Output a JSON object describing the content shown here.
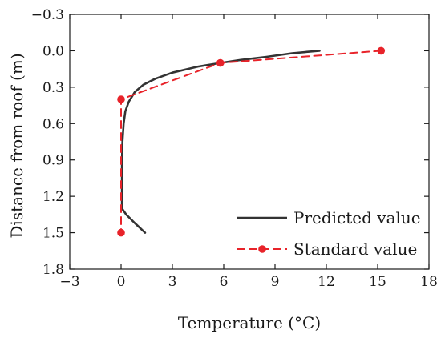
{
  "chart_data": {
    "type": "line",
    "xlabel": "Temperature (°C)",
    "ylabel": "Distance from roof (m)",
    "xlim": [
      -3,
      18
    ],
    "ylim": [
      1.8,
      -0.3
    ],
    "y_inverted": true,
    "xticks": [
      -3,
      0,
      3,
      6,
      9,
      12,
      15,
      18
    ],
    "xtick_labels": [
      "−3",
      "0",
      "3",
      "6",
      "9",
      "12",
      "15",
      "18"
    ],
    "yticks": [
      -0.3,
      0.0,
      0.3,
      0.6,
      0.9,
      1.2,
      1.5,
      1.8
    ],
    "ytick_labels": [
      "−0.3",
      "0.0",
      "0.3",
      "0.6",
      "0.9",
      "1.2",
      "1.5",
      "1.8"
    ],
    "grid": false,
    "legend_position": "bottom-right",
    "series": [
      {
        "name": "Predicted value",
        "style": "solid",
        "color": "#333333",
        "markers": false,
        "points": [
          {
            "x": 11.6,
            "y": 0.0
          },
          {
            "x": 10.0,
            "y": 0.02
          },
          {
            "x": 8.5,
            "y": 0.05
          },
          {
            "x": 7.0,
            "y": 0.075
          },
          {
            "x": 5.8,
            "y": 0.1
          },
          {
            "x": 4.5,
            "y": 0.13
          },
          {
            "x": 3.0,
            "y": 0.18
          },
          {
            "x": 2.0,
            "y": 0.23
          },
          {
            "x": 1.3,
            "y": 0.28
          },
          {
            "x": 0.8,
            "y": 0.34
          },
          {
            "x": 0.45,
            "y": 0.42
          },
          {
            "x": 0.25,
            "y": 0.5
          },
          {
            "x": 0.15,
            "y": 0.6
          },
          {
            "x": 0.08,
            "y": 0.75
          },
          {
            "x": 0.05,
            "y": 0.9
          },
          {
            "x": 0.05,
            "y": 1.1
          },
          {
            "x": 0.05,
            "y": 1.3
          },
          {
            "x": 0.3,
            "y": 1.35
          },
          {
            "x": 0.8,
            "y": 1.42
          },
          {
            "x": 1.4,
            "y": 1.5
          }
        ]
      },
      {
        "name": "Standard value",
        "style": "dashed",
        "color": "#e8232a",
        "markers": true,
        "points": [
          {
            "x": 15.2,
            "y": 0.0
          },
          {
            "x": 5.8,
            "y": 0.1
          },
          {
            "x": 0.0,
            "y": 0.4
          },
          {
            "x": 0.0,
            "y": 1.5
          }
        ]
      }
    ]
  }
}
